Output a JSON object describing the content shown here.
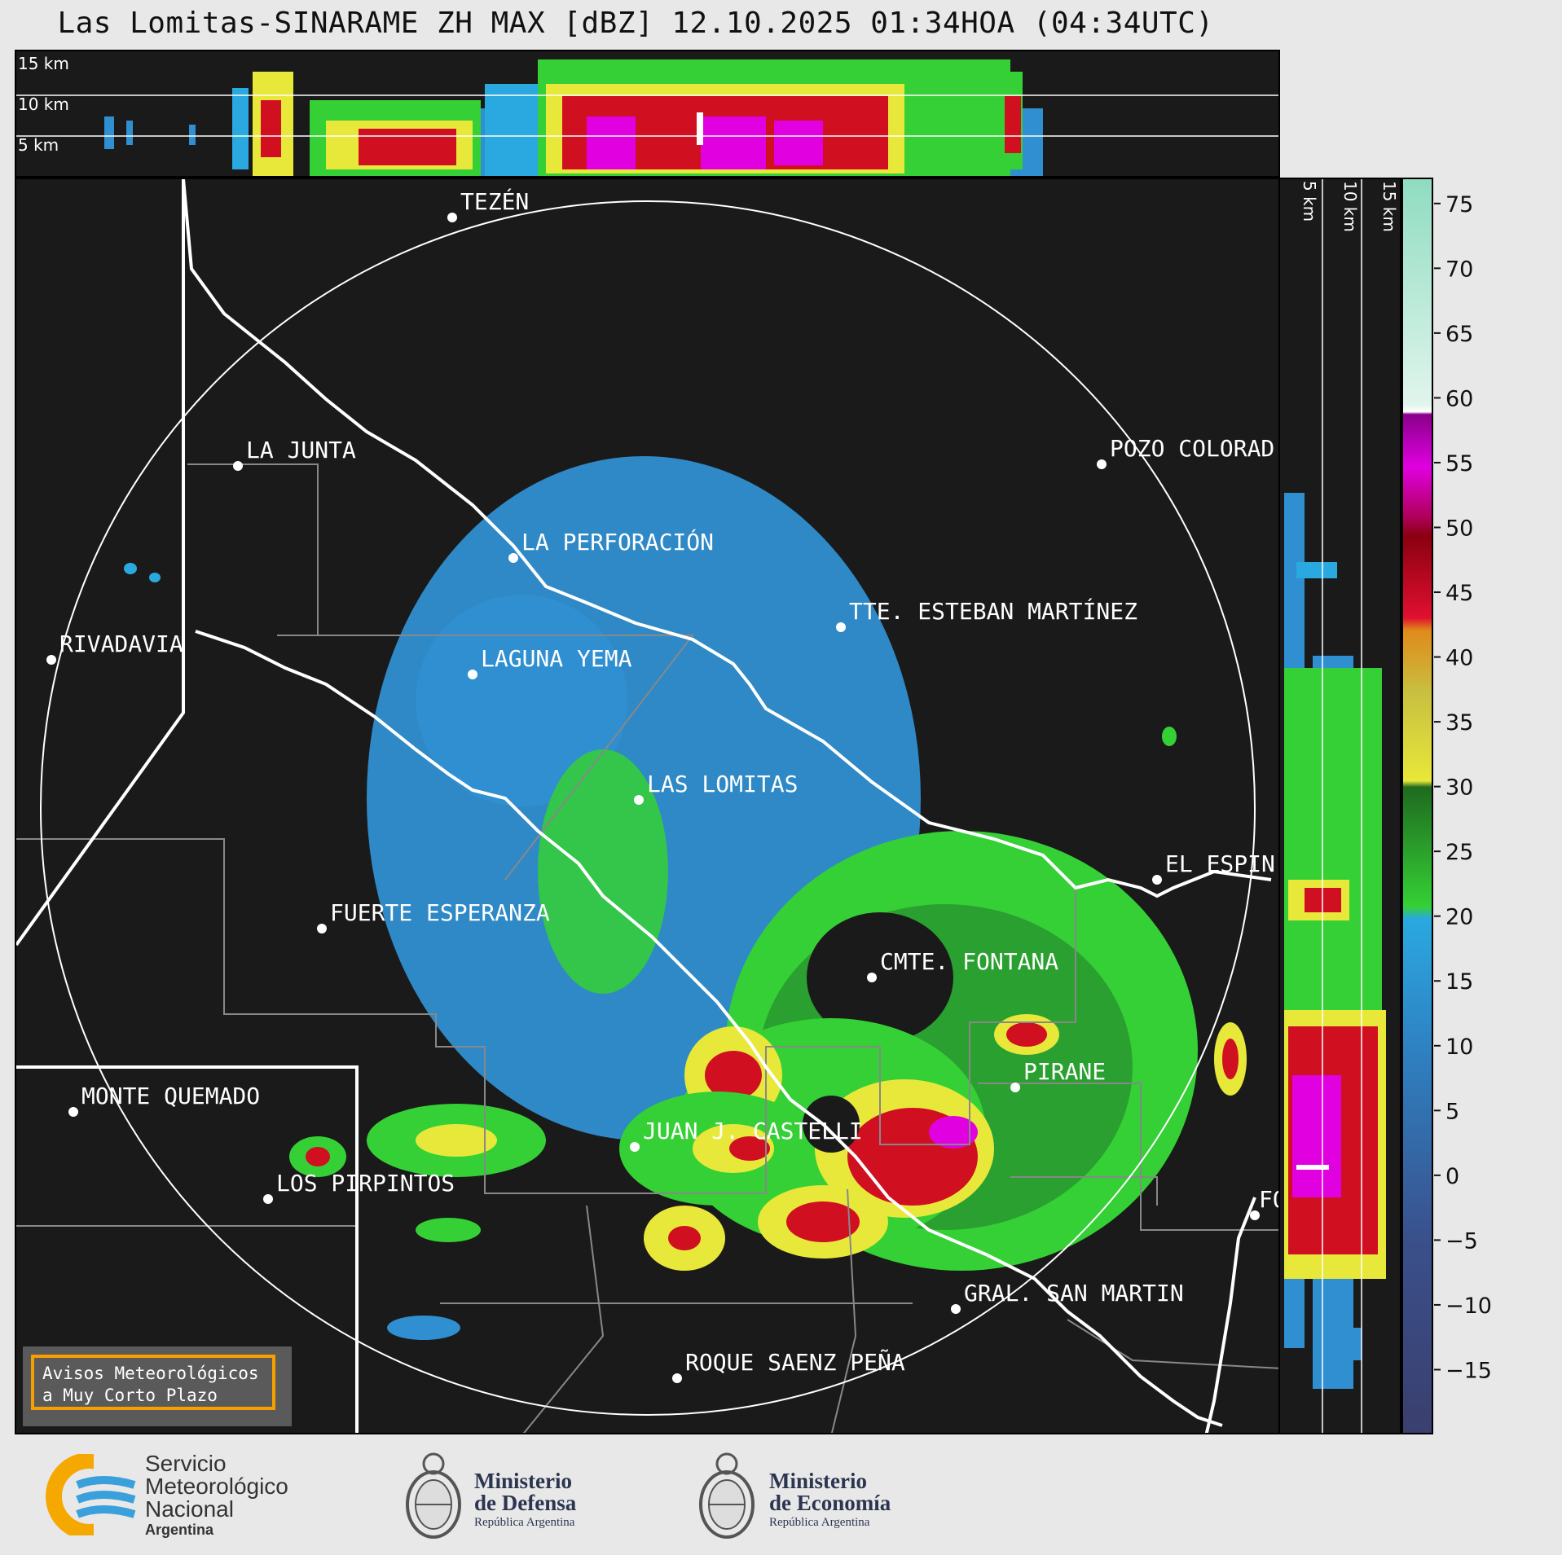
{
  "title": "Las Lomitas-SINARAME ZH MAX [dBZ] 12.10.2025 01:34HOA (04:34UTC)",
  "top_panel": {
    "height_labels": [
      "15 km",
      "10 km",
      "5 km"
    ]
  },
  "side_panel": {
    "height_labels": [
      "5 km",
      "10 km",
      "15 km"
    ]
  },
  "cities": [
    {
      "name": "TEZÉN"
    },
    {
      "name": "LA JUNTA"
    },
    {
      "name": "POZO COLORAD"
    },
    {
      "name": "LA PERFORACIÓN"
    },
    {
      "name": "RIVADAVIA"
    },
    {
      "name": "TTE. ESTEBAN MARTÍNEZ"
    },
    {
      "name": "LAGUNA YEMA"
    },
    {
      "name": "LAS LOMITAS"
    },
    {
      "name": "EL ESPIN"
    },
    {
      "name": "FUERTE ESPERANZA"
    },
    {
      "name": "CMTE. FONTANA"
    },
    {
      "name": "PIRANE"
    },
    {
      "name": "MONTE QUEMADO"
    },
    {
      "name": "JUAN J. CASTELLI"
    },
    {
      "name": "LOS PIRPINTOS"
    },
    {
      "name": "GRAL. SAN MARTIN"
    },
    {
      "name": "ROQUE SAENZ PEÑA"
    },
    {
      "name": "FO"
    }
  ],
  "colorbar": {
    "unit": "dBZ",
    "min": -20,
    "max": 77,
    "ticks": [
      "75",
      "70",
      "65",
      "60",
      "55",
      "50",
      "45",
      "40",
      "35",
      "30",
      "25",
      "20",
      "15",
      "10",
      "5",
      "0",
      "−5",
      "−10",
      "−15"
    ],
    "tick_values": [
      75,
      70,
      65,
      60,
      55,
      50,
      45,
      40,
      35,
      30,
      25,
      20,
      15,
      10,
      5,
      0,
      -5,
      -10,
      -15
    ],
    "colors": {
      "low": "#3a3f6e",
      "blue": "#2f8fd0",
      "cyan": "#2aa8e0",
      "green": "#35d035",
      "dark_green": "#1f7a1f",
      "yellow": "#e8e83a",
      "orange": "#e08a1a",
      "red": "#d01020",
      "dark_red": "#8a0010",
      "magenta": "#e000e0",
      "purple": "#8a008a",
      "white": "#ffffff",
      "teal": "#8fdcc0"
    }
  },
  "avisos": {
    "line1": "Avisos Meteorológicos",
    "line2": "a Muy Corto Plazo"
  },
  "footer": {
    "smn": {
      "line1": "Servicio",
      "line2": "Meteorológico",
      "line3": "Nacional",
      "line4": "Argentina"
    },
    "defensa": {
      "line1": "Ministerio",
      "line2": "de Defensa",
      "line3": "República Argentina"
    },
    "economia": {
      "line1": "Ministerio",
      "line2": "de Economía",
      "line3": "República Argentina"
    },
    "icons": [
      "smn-logo-icon",
      "argentina-coat-of-arms-icon"
    ]
  }
}
